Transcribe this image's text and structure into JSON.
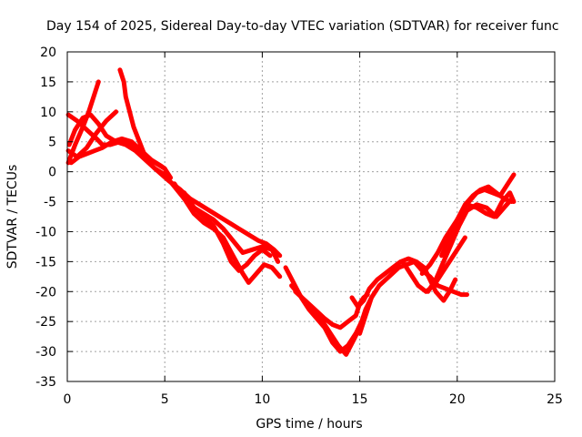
{
  "chart_data": {
    "type": "line",
    "title": "Day 154 of 2025, Sidereal Day-to-day VTEC variation (SDTVAR) for receiver func",
    "xlabel": "GPS time / hours",
    "ylabel": "SDTVAR / TECUs",
    "xlim": [
      0,
      25
    ],
    "ylim": [
      -35,
      20
    ],
    "xticks": [
      0,
      5,
      10,
      15,
      20,
      25
    ],
    "yticks": [
      20,
      15,
      10,
      5,
      0,
      -5,
      -10,
      -15,
      -20,
      -25,
      -30,
      -35
    ],
    "grid": true,
    "color": "#ff0000",
    "series": [
      {
        "name": "trace-1",
        "x": [
          0.05,
          0.4,
          0.8,
          1.1,
          1.4,
          1.6
        ],
        "y": [
          1.5,
          4.5,
          7.5,
          10.0,
          13.0,
          15.0
        ]
      },
      {
        "name": "trace-2",
        "x": [
          0.05,
          0.5,
          1.0,
          1.5,
          2.0,
          2.5
        ],
        "y": [
          3.5,
          2.5,
          4.0,
          6.5,
          8.5,
          10.0
        ]
      },
      {
        "name": "trace-3",
        "x": [
          0.05,
          0.5,
          1.0,
          1.5,
          1.8,
          2.2,
          2.7,
          3.2,
          3.7
        ],
        "y": [
          9.5,
          8.5,
          7.0,
          5.5,
          4.5,
          4.5,
          5.0,
          4.5,
          4.0
        ]
      },
      {
        "name": "trace-4",
        "x": [
          0.2,
          0.6,
          1.0,
          1.4,
          1.8,
          2.3,
          2.8,
          3.3,
          3.8,
          4.3,
          4.8,
          5.0
        ],
        "y": [
          1.5,
          2.5,
          3.0,
          3.5,
          4.0,
          5.0,
          5.5,
          5.0,
          3.5,
          2.0,
          1.0,
          0.5
        ]
      },
      {
        "name": "trace-5",
        "x": [
          2.7,
          2.9,
          3.0,
          3.2,
          3.4,
          3.7,
          4.0,
          4.5,
          5.0,
          5.3
        ],
        "y": [
          17.0,
          15.0,
          12.5,
          10.0,
          7.5,
          5.0,
          2.5,
          1.5,
          0.5,
          -1.0
        ]
      },
      {
        "name": "trace-6",
        "x": [
          0.1,
          0.4,
          0.8,
          1.2,
          1.6,
          2.0,
          2.5,
          3.0,
          3.5,
          4.0,
          4.5,
          5.0
        ],
        "y": [
          4.5,
          7.0,
          9.0,
          9.5,
          8.0,
          6.0,
          5.0,
          4.5,
          3.5,
          2.0,
          0.5,
          -0.5
        ]
      },
      {
        "name": "trace-7",
        "x": [
          4.5,
          5.2,
          5.8,
          6.3,
          6.8,
          7.3,
          7.8,
          8.3,
          8.8,
          9.3,
          9.8,
          10.2,
          10.6,
          10.9
        ],
        "y": [
          0.5,
          -1.5,
          -3.0,
          -4.5,
          -5.5,
          -6.5,
          -7.5,
          -8.5,
          -9.5,
          -10.5,
          -11.5,
          -12.0,
          -13.0,
          -14.0
        ]
      },
      {
        "name": "trace-8",
        "x": [
          5.0,
          5.5,
          6.0,
          6.5,
          7.0,
          7.5,
          8.0,
          8.5,
          9.0,
          9.5,
          10.0,
          10.5,
          10.8
        ],
        "y": [
          -0.5,
          -2.5,
          -4.5,
          -6.0,
          -7.0,
          -8.0,
          -9.5,
          -11.5,
          -13.5,
          -13.0,
          -12.5,
          -13.0,
          -15.0
        ]
      },
      {
        "name": "trace-9",
        "x": [
          5.5,
          6.0,
          6.5,
          7.0,
          7.5,
          8.0,
          8.5,
          9.0,
          9.3,
          9.7,
          10.1,
          10.5,
          10.9
        ],
        "y": [
          -2.0,
          -4.5,
          -7.0,
          -8.5,
          -9.5,
          -11.0,
          -14.0,
          -17.0,
          -18.5,
          -17.0,
          -15.5,
          -16.0,
          -17.5
        ]
      },
      {
        "name": "trace-10",
        "x": [
          6.0,
          6.5,
          7.0,
          7.5,
          8.0,
          8.4,
          8.8,
          9.2,
          9.6,
          10.0,
          10.4
        ],
        "y": [
          -3.5,
          -6.0,
          -7.5,
          -9.0,
          -12.0,
          -15.0,
          -16.5,
          -15.5,
          -14.0,
          -13.0,
          -14.0
        ]
      },
      {
        "name": "trace-11",
        "x": [
          11.2,
          11.6,
          12.0,
          12.4,
          12.8,
          13.2,
          13.6,
          14.0,
          14.4,
          14.8,
          15.1
        ],
        "y": [
          -16.0,
          -18.5,
          -21.0,
          -23.0,
          -24.5,
          -26.0,
          -28.5,
          -30.0,
          -29.0,
          -27.0,
          -25.0
        ]
      },
      {
        "name": "trace-12",
        "x": [
          11.5,
          11.9,
          12.3,
          12.7,
          13.1,
          13.5,
          13.9,
          14.3,
          14.7,
          15.0,
          15.3,
          15.6
        ],
        "y": [
          -19.0,
          -20.5,
          -22.0,
          -23.5,
          -25.0,
          -27.0,
          -29.0,
          -30.5,
          -28.0,
          -26.0,
          -23.0,
          -21.0
        ]
      },
      {
        "name": "trace-13",
        "x": [
          11.7,
          12.2,
          12.7,
          13.2,
          13.6,
          14.0,
          14.4,
          14.8,
          15.0,
          15.2,
          15.4
        ],
        "y": [
          -20.0,
          -21.5,
          -23.0,
          -24.5,
          -25.5,
          -26.0,
          -25.0,
          -24.0,
          -22.0,
          -21.0,
          -20.5
        ]
      },
      {
        "name": "trace-14",
        "x": [
          14.6,
          14.9,
          15.2,
          15.5,
          15.9,
          16.3,
          16.7,
          17.1,
          17.5,
          17.9,
          18.3,
          18.6,
          18.9,
          19.3,
          19.6,
          19.9
        ],
        "y": [
          -21.0,
          -22.5,
          -21.5,
          -19.5,
          -18.0,
          -17.0,
          -16.0,
          -15.0,
          -14.5,
          -15.0,
          -16.0,
          -18.0,
          -20.0,
          -21.5,
          -20.0,
          -18.0
        ]
      },
      {
        "name": "trace-15",
        "x": [
          15.0,
          15.3,
          15.6,
          16.0,
          16.5,
          17.0,
          17.4,
          17.8,
          18.2,
          18.6,
          19.0,
          19.4,
          19.8,
          20.2,
          20.5
        ],
        "y": [
          -27.0,
          -24.0,
          -21.0,
          -19.0,
          -17.5,
          -16.0,
          -15.5,
          -15.0,
          -16.5,
          -17.5,
          -19.0,
          -19.5,
          -20.0,
          -20.5,
          -20.5
        ]
      },
      {
        "name": "trace-16",
        "x": [
          17.2,
          17.6,
          18.0,
          18.4,
          18.8,
          19.2,
          19.6,
          20.0,
          20.4
        ],
        "y": [
          -15.0,
          -17.0,
          -19.0,
          -20.0,
          -19.0,
          -17.0,
          -15.0,
          -13.0,
          -11.0
        ]
      },
      {
        "name": "trace-17",
        "x": [
          18.2,
          18.6,
          19.0,
          19.4,
          19.8,
          20.2,
          20.6,
          21.0,
          21.4,
          21.8,
          22.2,
          22.6,
          22.9
        ],
        "y": [
          -17.0,
          -15.5,
          -13.5,
          -11.0,
          -9.0,
          -7.0,
          -5.0,
          -3.5,
          -3.0,
          -3.5,
          -4.0,
          -2.0,
          -0.5
        ]
      },
      {
        "name": "trace-18",
        "x": [
          18.5,
          18.9,
          19.3,
          19.7,
          20.1,
          20.5,
          21.0,
          21.5,
          22.0,
          22.4,
          22.8
        ],
        "y": [
          -20.0,
          -18.0,
          -15.0,
          -12.0,
          -9.0,
          -6.5,
          -5.5,
          -6.0,
          -7.5,
          -6.0,
          -4.5
        ]
      },
      {
        "name": "trace-19",
        "x": [
          19.2,
          19.6,
          20.0,
          20.4,
          20.8,
          21.2,
          21.6,
          22.0,
          22.4,
          22.8
        ],
        "y": [
          -14.0,
          -11.0,
          -8.0,
          -5.5,
          -4.0,
          -3.0,
          -2.5,
          -3.5,
          -4.5,
          -5.0
        ]
      },
      {
        "name": "trace-20",
        "x": [
          20.5,
          21.0,
          21.5,
          21.9,
          22.3,
          22.7,
          22.9
        ],
        "y": [
          -5.5,
          -6.0,
          -7.0,
          -7.5,
          -5.0,
          -3.5,
          -5.0
        ]
      }
    ]
  }
}
